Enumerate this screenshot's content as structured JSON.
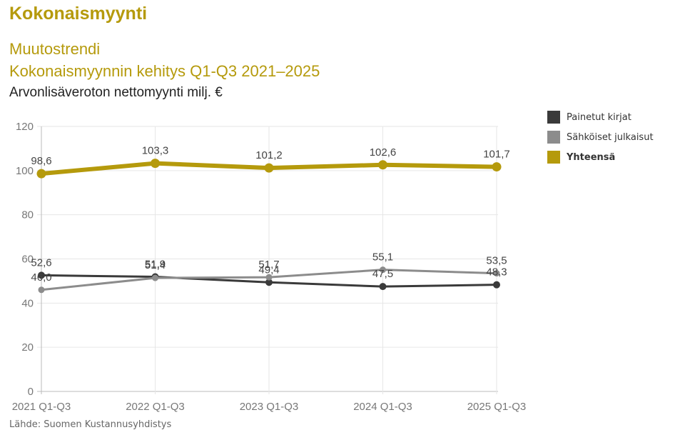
{
  "header": {
    "title": "Kokonaismyynti",
    "subtitle1": "Muutostrendi",
    "subtitle2": "Kokonaismyynnin kehitys Q1-Q3 2021–2025",
    "unit": "Arvonlisäveroton nettomyynti milj. €"
  },
  "source": "Lähde: Suomen Kustannusyhdistys",
  "chart_data": {
    "type": "line",
    "title": "Kokonaismyynnin kehitys Q1-Q3 2021–2025",
    "xlabel": "",
    "ylabel": "Arvonlisäveroton nettomyynti milj. €",
    "categories": [
      "2021 Q1-Q3",
      "2022 Q1-Q3",
      "2023 Q1-Q3",
      "2024 Q1-Q3",
      "2025 Q1-Q3"
    ],
    "ylim": [
      0,
      120
    ],
    "yticks": [
      0,
      20,
      40,
      60,
      80,
      100,
      120
    ],
    "grid": true,
    "legend_position": "right",
    "series": [
      {
        "name": "Painetut kirjat",
        "color": "#3a3a3a",
        "values": [
          52.6,
          51.9,
          49.4,
          47.5,
          48.3
        ],
        "labels": [
          "52,6",
          "51,9",
          "49,4",
          "47,5",
          "48,3"
        ]
      },
      {
        "name": "Sähköiset julkaisut",
        "color": "#8c8c8c",
        "values": [
          46.0,
          51.4,
          51.7,
          55.1,
          53.5
        ],
        "labels": [
          "46,0",
          "51,4",
          "51,7",
          "55,1",
          "53,5"
        ]
      },
      {
        "name": "Yhteensä",
        "color": "#b59a0c",
        "bold": true,
        "values": [
          98.6,
          103.3,
          101.2,
          102.6,
          101.7
        ],
        "labels": [
          "98,6",
          "103,3",
          "101,2",
          "102,6",
          "101,7"
        ]
      }
    ]
  }
}
